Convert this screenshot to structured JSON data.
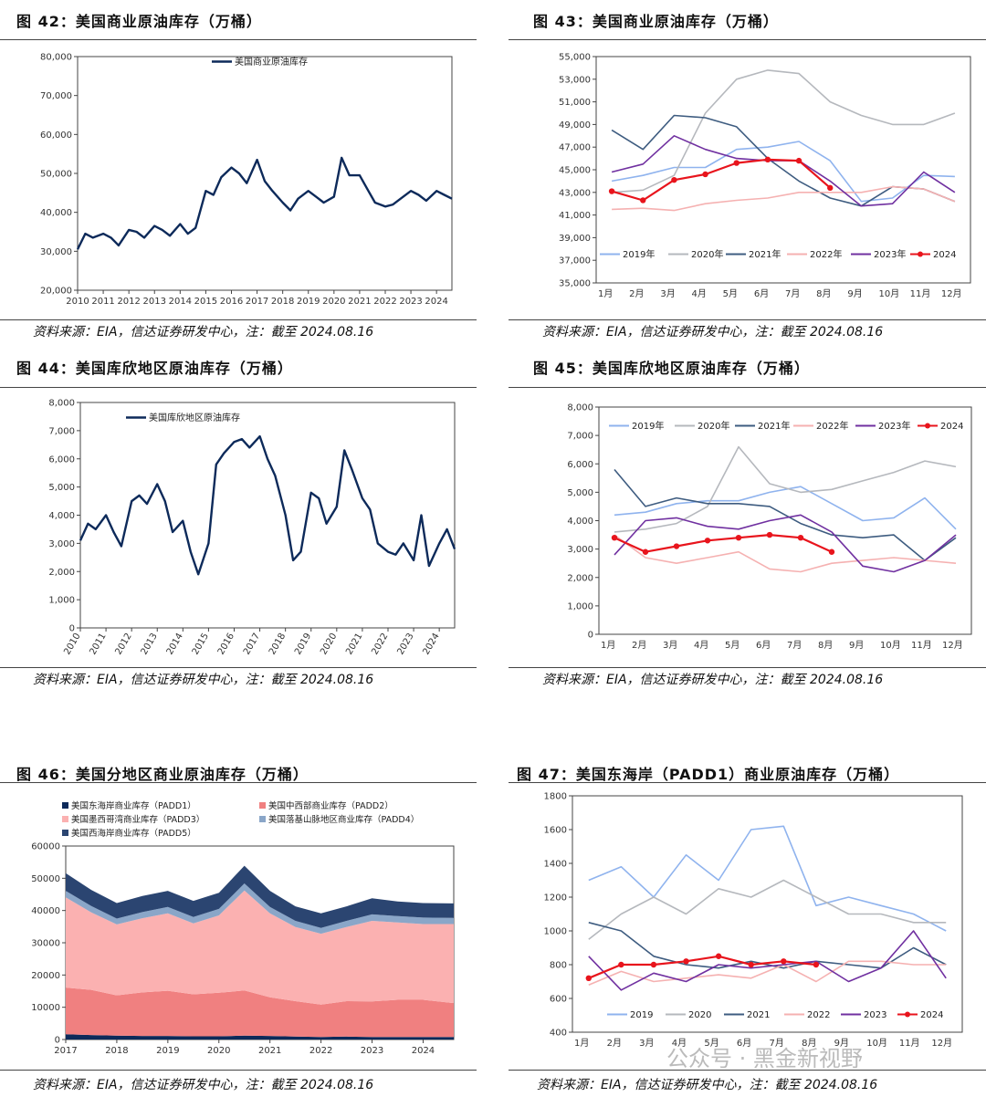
{
  "charts": [
    {
      "id": "c42",
      "title": "图 42：美国商业原油库存（万桶）",
      "source": "资料来源：EIA，信达证券研发中心，注：截至 2024.08.16",
      "chart_data": {
        "type": "line",
        "legend": [
          "美国商业原油库存"
        ],
        "ylim": [
          20000,
          80000
        ],
        "yticks": [
          "20,000",
          "30,000",
          "40,000",
          "50,000",
          "60,000",
          "70,000",
          "80,000"
        ],
        "xticks": [
          "2010",
          "2011",
          "2012",
          "2013",
          "2014",
          "2015",
          "2016",
          "2017",
          "2018",
          "2019",
          "2020",
          "2021",
          "2022",
          "2023",
          "2024"
        ],
        "xlim": [
          2010,
          2024.6
        ],
        "series": [
          {
            "name": "美国商业原油库存",
            "color": "#0d2a5a",
            "x": [
              2010,
              2010.3,
              2010.6,
              2011,
              2011.3,
              2011.6,
              2012,
              2012.3,
              2012.6,
              2013,
              2013.3,
              2013.6,
              2014,
              2014.3,
              2014.6,
              2015,
              2015.3,
              2015.6,
              2016,
              2016.3,
              2016.6,
              2017,
              2017.3,
              2017.6,
              2018,
              2018.3,
              2018.6,
              2019,
              2019.3,
              2019.6,
              2020,
              2020.3,
              2020.6,
              2021,
              2021.3,
              2021.6,
              2022,
              2022.3,
              2022.6,
              2023,
              2023.3,
              2023.6,
              2024,
              2024.3,
              2024.6
            ],
            "values": [
              30500,
              34500,
              33500,
              34500,
              33500,
              31500,
              35500,
              35000,
              33500,
              36500,
              35500,
              34000,
              37000,
              34500,
              36000,
              45500,
              44500,
              49000,
              51500,
              50000,
              47500,
              53500,
              48000,
              45500,
              42500,
              40500,
              43500,
              45500,
              44000,
              42500,
              44000,
              54000,
              49500,
              49500,
              46000,
              42500,
              41500,
              42000,
              43500,
              45500,
              44500,
              43000,
              45500,
              44500,
              43500
            ]
          }
        ]
      }
    },
    {
      "id": "c43",
      "title": "图 43：美国商业原油库存（万桶）",
      "source": "资料来源：EIA，信达证券研发中心，注：截至 2024.08.16",
      "chart_data": {
        "type": "line",
        "ylim": [
          35000,
          55000
        ],
        "yticks": [
          "35,000",
          "37,000",
          "39,000",
          "41,000",
          "43,000",
          "45,000",
          "47,000",
          "49,000",
          "51,000",
          "53,000",
          "55,000"
        ],
        "xticks": [
          "1月",
          "2月",
          "3月",
          "4月",
          "5月",
          "6月",
          "7月",
          "8月",
          "9月",
          "10月",
          "11月",
          "12月"
        ],
        "legend": [
          "2019年",
          "2020年",
          "2021年",
          "2022年",
          "2023年",
          "2024"
        ],
        "series": [
          {
            "name": "2019年",
            "color": "#8fb3ee",
            "values": [
              44000,
              44500,
              45200,
              45200,
              46800,
              47000,
              47500,
              45800,
              42200,
              42500,
              44500,
              44400
            ]
          },
          {
            "name": "2020年",
            "color": "#b5b8bd",
            "values": [
              43000,
              43200,
              44500,
              50000,
              53000,
              53800,
              53500,
              51000,
              49800,
              49000,
              49000,
              50000
            ]
          },
          {
            "name": "2021年",
            "color": "#3e5c80",
            "values": [
              48500,
              46800,
              49800,
              49600,
              48800,
              46000,
              44000,
              42500,
              41800,
              43500,
              43300,
              42200
            ]
          },
          {
            "name": "2022年",
            "color": "#f5b1b1",
            "values": [
              41500,
              41600,
              41400,
              42000,
              42300,
              42500,
              43000,
              43000,
              43000,
              43500,
              43300,
              42200
            ]
          },
          {
            "name": "2023年",
            "color": "#7030a0",
            "values": [
              44800,
              45500,
              48000,
              46800,
              46000,
              45800,
              45800,
              44000,
              41800,
              42000,
              44800,
              43000
            ]
          },
          {
            "name": "2024",
            "color": "#e8141c",
            "values": [
              43100,
              42300,
              44100,
              44600,
              45600,
              45900,
              45800,
              43400
            ]
          }
        ]
      }
    },
    {
      "id": "c44",
      "title": "图 44：美国库欣地区原油库存（万桶）",
      "source": "资料来源：EIA，信达证券研发中心，注：截至 2024.08.16",
      "chart_data": {
        "type": "line",
        "legend": [
          "美国库欣地区原油库存"
        ],
        "ylim": [
          0,
          8000
        ],
        "yticks": [
          "0",
          "1,000",
          "2,000",
          "3,000",
          "4,000",
          "5,000",
          "6,000",
          "7,000",
          "8,000"
        ],
        "xticks": [
          "2010",
          "2011",
          "2012",
          "2013",
          "2014",
          "2015",
          "2016",
          "2017",
          "2018",
          "2019",
          "2020",
          "2021",
          "2022",
          "2023",
          "2024"
        ],
        "xlim": [
          2010,
          2024.6
        ],
        "series": [
          {
            "name": "美国库欣地区原油库存",
            "color": "#0d2a5a",
            "x": [
              2010,
              2010.3,
              2010.6,
              2011,
              2011.3,
              2011.6,
              2012,
              2012.3,
              2012.6,
              2013,
              2013.3,
              2013.6,
              2014,
              2014.3,
              2014.6,
              2015,
              2015.3,
              2015.6,
              2016,
              2016.3,
              2016.6,
              2017,
              2017.3,
              2017.6,
              2018,
              2018.3,
              2018.6,
              2019,
              2019.3,
              2019.6,
              2020,
              2020.3,
              2020.6,
              2021,
              2021.3,
              2021.6,
              2022,
              2022.3,
              2022.6,
              2023,
              2023.3,
              2023.6,
              2024,
              2024.3,
              2024.6
            ],
            "values": [
              3100,
              3700,
              3500,
              4000,
              3400,
              2900,
              4500,
              4700,
              4400,
              5100,
              4500,
              3400,
              3800,
              2700,
              1900,
              3000,
              5800,
              6200,
              6600,
              6700,
              6400,
              6800,
              6000,
              5400,
              4000,
              2400,
              2700,
              4800,
              4600,
              3700,
              4300,
              6300,
              5600,
              4600,
              4200,
              3000,
              2700,
              2600,
              3000,
              2400,
              4000,
              2200,
              3000,
              3500,
              2800
            ]
          }
        ]
      }
    },
    {
      "id": "c45",
      "title": "图 45：美国库欣地区原油库存（万桶）",
      "source": "资料来源：EIA，信达证券研发中心，注：截至 2024.08.16",
      "chart_data": {
        "type": "line",
        "ylim": [
          0,
          8000
        ],
        "yticks": [
          "0",
          "1,000",
          "2,000",
          "3,000",
          "4,000",
          "5,000",
          "6,000",
          "7,000",
          "8,000"
        ],
        "xticks": [
          "1月",
          "2月",
          "3月",
          "4月",
          "5月",
          "6月",
          "7月",
          "8月",
          "9月",
          "10月",
          "11月",
          "12月"
        ],
        "legend": [
          "2019年",
          "2020年",
          "2021年",
          "2022年",
          "2023年",
          "2024"
        ],
        "series": [
          {
            "name": "2019年",
            "color": "#8fb3ee",
            "values": [
              4200,
              4300,
              4600,
              4700,
              4700,
              5000,
              5200,
              4600,
              4000,
              4100,
              4800,
              3700
            ]
          },
          {
            "name": "2020年",
            "color": "#b5b8bd",
            "values": [
              3600,
              3700,
              3900,
              4500,
              6600,
              5300,
              5000,
              5100,
              5400,
              5700,
              6100,
              5900
            ]
          },
          {
            "name": "2021年",
            "color": "#3e5c80",
            "values": [
              5800,
              4500,
              4800,
              4600,
              4600,
              4500,
              3900,
              3500,
              3400,
              3500,
              2600,
              3400
            ]
          },
          {
            "name": "2022年",
            "color": "#f5b1b1",
            "values": [
              3500,
              2700,
              2500,
              2700,
              2900,
              2300,
              2200,
              2500,
              2600,
              2700,
              2600,
              2500
            ]
          },
          {
            "name": "2023年",
            "color": "#7030a0",
            "values": [
              2800,
              4000,
              4100,
              3800,
              3700,
              4000,
              4200,
              3600,
              2400,
              2200,
              2600,
              3500
            ]
          },
          {
            "name": "2024",
            "color": "#e8141c",
            "values": [
              3400,
              2900,
              3100,
              3300,
              3400,
              3500,
              3400,
              2900
            ]
          }
        ]
      }
    },
    {
      "id": "c46",
      "title": "图 46：美国分地区商业原油库存（万桶）",
      "source": "资料来源：EIA，信达证券研发中心，注：截至 2024.08.16",
      "chart_data": {
        "type": "area",
        "ylim": [
          0,
          60000
        ],
        "yticks": [
          "0",
          "10000",
          "20000",
          "30000",
          "40000",
          "50000",
          "60000"
        ],
        "xticks": [
          "2017",
          "2018",
          "2019",
          "2020",
          "2021",
          "2022",
          "2023",
          "2024"
        ],
        "legend": [
          "美国东海岸商业库存（PADD1）",
          "美国中西部商业库存（PADD2）",
          "美国墨西哥湾商业库存（PADD3）",
          "美国落基山脉地区商业库存（PADD4）",
          "美国西海岸商业库存（PADD5）"
        ],
        "x": [
          2017,
          2017.5,
          2018,
          2018.5,
          2019,
          2019.5,
          2020,
          2020.5,
          2021,
          2021.5,
          2022,
          2022.5,
          2023,
          2023.5,
          2024,
          2024.6
        ],
        "series": [
          {
            "name": "美国东海岸商业库存（PADD1）",
            "color": "#0d2a5a",
            "values": [
              1600,
              1400,
              1200,
              1100,
              1100,
              1000,
              1000,
              1200,
              1100,
              900,
              800,
              900,
              800,
              800,
              800,
              800
            ]
          },
          {
            "name": "美国中西部商业库存（PADD2）",
            "color": "#f08080",
            "values": [
              14500,
              14000,
              12500,
              13500,
              14000,
              13000,
              13500,
              14000,
              12000,
              11000,
              10000,
              11000,
              11000,
              11500,
              11500,
              10500
            ]
          },
          {
            "name": "美国墨西哥湾商业库存（PADD3）",
            "color": "#fbb1b1",
            "values": [
              28000,
              24000,
              22000,
              23000,
              24000,
              22000,
              24000,
              31000,
              26000,
              23000,
              22000,
              23000,
              25000,
              24000,
              23500,
              24500
            ]
          },
          {
            "name": "美国落基山脉地区商业库存（PADD4）",
            "color": "#8aa6c8",
            "values": [
              2000,
              2000,
              1800,
              1900,
              2000,
              2000,
              2000,
              2200,
              2000,
              1900,
              1800,
              1900,
              2000,
              2000,
              2000,
              1900
            ]
          },
          {
            "name": "美国西海岸商业库存（PADD5）",
            "color": "#2b4571",
            "values": [
              5500,
              5000,
              4800,
              5000,
              5000,
              5000,
              5000,
              5500,
              5000,
              4500,
              4500,
              4500,
              5000,
              4500,
              4500,
              4500
            ]
          }
        ]
      }
    },
    {
      "id": "c47",
      "title": "图 47：美国东海岸（PADD1）商业原油库存（万桶）",
      "source": "资料来源：EIA，信达证券研发中心，注：截至 2024.08.16",
      "chart_data": {
        "type": "line",
        "ylim": [
          400,
          1800
        ],
        "yticks": [
          "400",
          "600",
          "800",
          "1000",
          "1200",
          "1400",
          "1600",
          "1800"
        ],
        "xticks": [
          "1月",
          "2月",
          "3月",
          "4月",
          "5月",
          "6月",
          "7月",
          "8月",
          "9月",
          "10月",
          "11月",
          "12月"
        ],
        "legend": [
          "2019",
          "2020",
          "2021",
          "2022",
          "2023",
          "2024"
        ],
        "series": [
          {
            "name": "2019",
            "color": "#8fb3ee",
            "values": [
              1300,
              1380,
              1200,
              1450,
              1300,
              1600,
              1620,
              1150,
              1200,
              1150,
              1100,
              1000
            ]
          },
          {
            "name": "2020",
            "color": "#b5b8bd",
            "values": [
              950,
              1100,
              1200,
              1100,
              1250,
              1200,
              1300,
              1200,
              1100,
              1100,
              1050,
              1050
            ]
          },
          {
            "name": "2021",
            "color": "#3e5c80",
            "values": [
              1050,
              1000,
              850,
              800,
              780,
              820,
              780,
              820,
              800,
              780,
              900,
              800
            ]
          },
          {
            "name": "2022",
            "color": "#f5b1b1",
            "values": [
              680,
              760,
              700,
              720,
              740,
              720,
              800,
              700,
              820,
              820,
              800,
              800
            ]
          },
          {
            "name": "2023",
            "color": "#7030a0",
            "values": [
              850,
              650,
              750,
              700,
              800,
              780,
              800,
              820,
              700,
              780,
              1000,
              720
            ]
          },
          {
            "name": "2024",
            "color": "#e8141c",
            "values": [
              720,
              800,
              800,
              820,
              850,
              800,
              820,
              800
            ]
          }
        ]
      }
    }
  ],
  "watermark": "公众号 · 黑金新视野"
}
